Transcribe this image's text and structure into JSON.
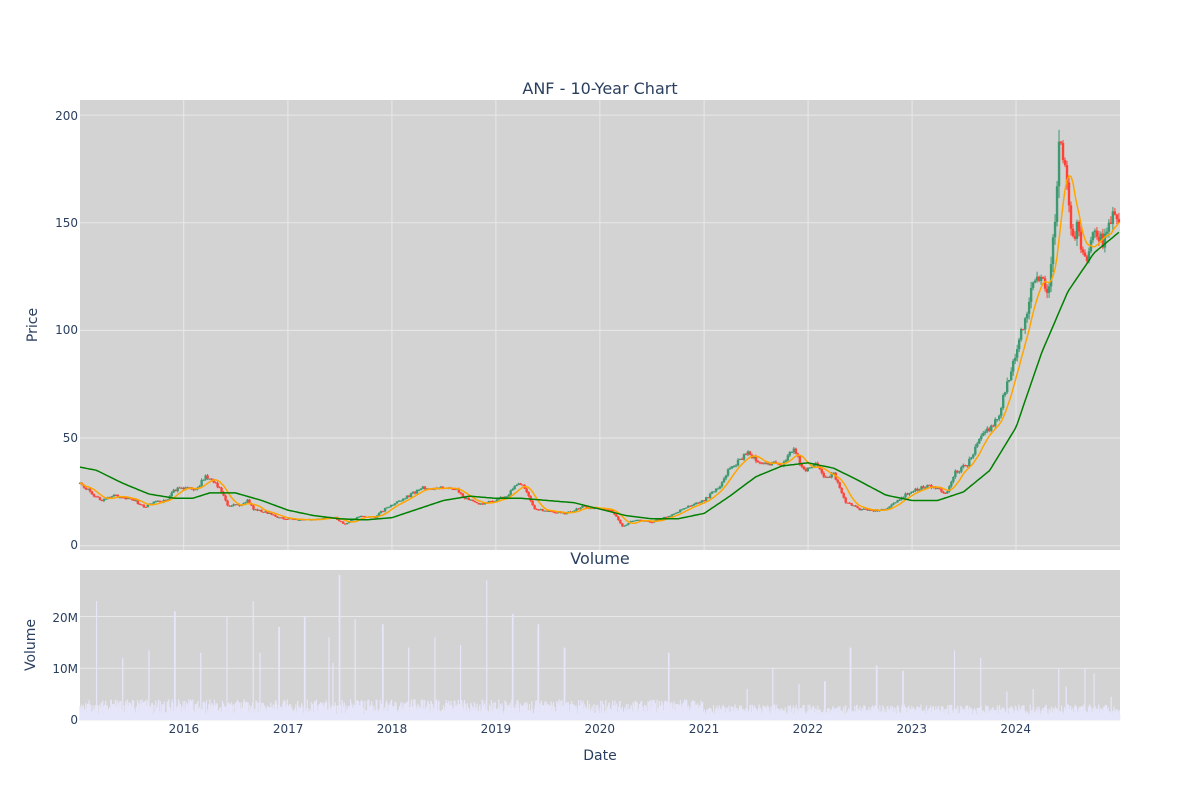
{
  "chart_data": [
    {
      "type": "candlestick",
      "title": "ANF - 10-Year Chart",
      "ylabel": "Price",
      "ylim": [
        -2,
        207
      ],
      "yticks": [
        0,
        50,
        100,
        150,
        200
      ],
      "xlim": [
        "2015-01-02",
        "2024-12-31"
      ],
      "xticks": [
        "2016",
        "2017",
        "2018",
        "2019",
        "2020",
        "2021",
        "2022",
        "2023",
        "2024"
      ],
      "colors": {
        "up": "#3d9970",
        "down": "#ff4136",
        "ma_short": "#ffa500",
        "ma_long": "#008000",
        "plot_bg": "#d3d3d3",
        "grid": "#e8e8e8"
      },
      "close_anchors": [
        [
          "2015-01-02",
          29
        ],
        [
          "2015-02-15",
          24
        ],
        [
          "2015-03-15",
          21
        ],
        [
          "2015-05-01",
          23
        ],
        [
          "2015-07-01",
          22
        ],
        [
          "2015-08-15",
          18
        ],
        [
          "2015-09-15",
          20
        ],
        [
          "2015-11-01",
          21
        ],
        [
          "2015-12-01",
          26
        ],
        [
          "2016-01-15",
          27
        ],
        [
          "2016-02-15",
          26
        ],
        [
          "2016-03-15",
          32
        ],
        [
          "2016-04-15",
          30
        ],
        [
          "2016-05-10",
          26
        ],
        [
          "2016-06-01",
          19
        ],
        [
          "2016-07-15",
          19
        ],
        [
          "2016-08-15",
          21
        ],
        [
          "2016-09-01",
          17
        ],
        [
          "2016-11-01",
          15
        ],
        [
          "2016-12-01",
          13
        ],
        [
          "2017-02-01",
          12
        ],
        [
          "2017-04-01",
          12
        ],
        [
          "2017-05-15",
          13
        ],
        [
          "2017-06-15",
          13
        ],
        [
          "2017-07-15",
          10
        ],
        [
          "2017-08-15",
          12
        ],
        [
          "2017-09-15",
          14
        ],
        [
          "2017-11-01",
          13
        ],
        [
          "2017-12-15",
          18
        ],
        [
          "2018-03-01",
          23
        ],
        [
          "2018-04-15",
          27
        ],
        [
          "2018-05-15",
          26
        ],
        [
          "2018-07-01",
          27
        ],
        [
          "2018-08-15",
          27
        ],
        [
          "2018-09-15",
          22
        ],
        [
          "2018-11-01",
          19
        ],
        [
          "2019-01-01",
          21
        ],
        [
          "2019-02-15",
          24
        ],
        [
          "2019-03-15",
          29
        ],
        [
          "2019-04-15",
          27
        ],
        [
          "2019-05-15",
          17
        ],
        [
          "2019-07-01",
          16
        ],
        [
          "2019-09-01",
          15
        ],
        [
          "2019-11-01",
          18
        ],
        [
          "2020-01-01",
          17
        ],
        [
          "2020-02-15",
          16
        ],
        [
          "2020-03-20",
          9
        ],
        [
          "2020-05-01",
          12
        ],
        [
          "2020-07-01",
          11
        ],
        [
          "2020-09-01",
          14
        ],
        [
          "2020-11-01",
          18
        ],
        [
          "2021-01-01",
          21
        ],
        [
          "2021-03-01",
          28
        ],
        [
          "2021-04-01",
          36
        ],
        [
          "2021-05-01",
          39
        ],
        [
          "2021-06-01",
          43
        ],
        [
          "2021-07-01",
          40
        ],
        [
          "2021-08-01",
          38
        ],
        [
          "2021-10-01",
          38
        ],
        [
          "2021-11-15",
          45
        ],
        [
          "2021-12-15",
          35
        ],
        [
          "2022-02-01",
          38
        ],
        [
          "2022-03-01",
          32
        ],
        [
          "2022-04-01",
          33
        ],
        [
          "2022-05-15",
          20
        ],
        [
          "2022-07-01",
          17
        ],
        [
          "2022-08-15",
          16
        ],
        [
          "2022-10-01",
          17
        ],
        [
          "2022-12-01",
          23
        ],
        [
          "2023-01-15",
          26
        ],
        [
          "2023-03-01",
          28
        ],
        [
          "2023-05-01",
          24
        ],
        [
          "2023-06-01",
          34
        ],
        [
          "2023-07-15",
          38
        ],
        [
          "2023-09-01",
          50
        ],
        [
          "2023-11-01",
          60
        ],
        [
          "2023-12-15",
          82
        ],
        [
          "2024-02-01",
          105
        ],
        [
          "2024-03-01",
          125
        ],
        [
          "2024-04-01",
          125
        ],
        [
          "2024-04-20",
          115
        ],
        [
          "2024-05-15",
          150
        ],
        [
          "2024-06-01",
          185
        ],
        [
          "2024-07-01",
          170
        ],
        [
          "2024-07-15",
          140
        ],
        [
          "2024-08-01",
          148
        ],
        [
          "2024-09-01",
          133
        ],
        [
          "2024-10-01",
          148
        ],
        [
          "2024-11-01",
          140
        ],
        [
          "2024-12-01",
          152
        ],
        [
          "2024-12-31",
          150
        ]
      ],
      "ma_long_anchors": [
        [
          "2015-01-02",
          36.5
        ],
        [
          "2015-03-01",
          35
        ],
        [
          "2015-06-01",
          29
        ],
        [
          "2015-09-01",
          24
        ],
        [
          "2015-12-01",
          22
        ],
        [
          "2016-02-01",
          22
        ],
        [
          "2016-04-01",
          24.5
        ],
        [
          "2016-07-01",
          24.5
        ],
        [
          "2016-10-01",
          21
        ],
        [
          "2017-01-01",
          16.5
        ],
        [
          "2017-04-01",
          14
        ],
        [
          "2017-07-01",
          12.5
        ],
        [
          "2017-10-01",
          12
        ],
        [
          "2018-01-01",
          13
        ],
        [
          "2018-04-01",
          17
        ],
        [
          "2018-07-01",
          21
        ],
        [
          "2018-10-01",
          23
        ],
        [
          "2019-01-01",
          22
        ],
        [
          "2019-04-01",
          22
        ],
        [
          "2019-07-01",
          21
        ],
        [
          "2019-10-01",
          20
        ],
        [
          "2020-01-01",
          17
        ],
        [
          "2020-04-01",
          14
        ],
        [
          "2020-07-01",
          12.5
        ],
        [
          "2020-10-01",
          12.5
        ],
        [
          "2021-01-01",
          15
        ],
        [
          "2021-04-01",
          23
        ],
        [
          "2021-07-01",
          32
        ],
        [
          "2021-10-01",
          37
        ],
        [
          "2022-01-01",
          38.5
        ],
        [
          "2022-04-01",
          36
        ],
        [
          "2022-07-01",
          30
        ],
        [
          "2022-10-01",
          23.5
        ],
        [
          "2023-01-01",
          21
        ],
        [
          "2023-04-01",
          21
        ],
        [
          "2023-07-01",
          25
        ],
        [
          "2023-10-01",
          35
        ],
        [
          "2024-01-01",
          55
        ],
        [
          "2024-04-01",
          90
        ],
        [
          "2024-07-01",
          118
        ],
        [
          "2024-10-01",
          136
        ],
        [
          "2024-12-31",
          146
        ]
      ]
    },
    {
      "type": "bar",
      "title": "Volume",
      "ylabel": "Volume",
      "xlabel": "Date",
      "ylim": [
        0,
        29000000
      ],
      "yticks": [
        0,
        10000000,
        20000000
      ],
      "ytick_labels": [
        "0",
        "10M",
        "20M"
      ],
      "bar_color": "#e6e6fa",
      "spike_anchors": [
        [
          "2015-03-01",
          23000000
        ],
        [
          "2015-06-01",
          12000000
        ],
        [
          "2015-09-01",
          13500000
        ],
        [
          "2015-12-01",
          21000000
        ],
        [
          "2016-03-01",
          13000000
        ],
        [
          "2016-06-01",
          20000000
        ],
        [
          "2016-09-01",
          23000000
        ],
        [
          "2016-09-25",
          13000000
        ],
        [
          "2016-12-01",
          18000000
        ],
        [
          "2017-03-01",
          20000000
        ],
        [
          "2017-05-25",
          16000000
        ],
        [
          "2017-06-08",
          11000000
        ],
        [
          "2017-07-01",
          28000000
        ],
        [
          "2017-08-25",
          19500000
        ],
        [
          "2017-11-30",
          18500000
        ],
        [
          "2018-03-01",
          14000000
        ],
        [
          "2018-06-01",
          16000000
        ],
        [
          "2018-08-30",
          14500000
        ],
        [
          "2018-11-30",
          27000000
        ],
        [
          "2019-03-01",
          20500000
        ],
        [
          "2019-05-30",
          18500000
        ],
        [
          "2019-08-30",
          14000000
        ],
        [
          "2020-08-30",
          13000000
        ],
        [
          "2021-06-01",
          6000000
        ],
        [
          "2021-08-30",
          10000000
        ],
        [
          "2021-11-30",
          7000000
        ],
        [
          "2022-03-01",
          7500000
        ],
        [
          "2022-05-30",
          14000000
        ],
        [
          "2022-08-30",
          10500000
        ],
        [
          "2022-11-30",
          9500000
        ],
        [
          "2023-05-30",
          13500000
        ],
        [
          "2023-08-30",
          12000000
        ],
        [
          "2023-11-30",
          5500000
        ],
        [
          "2024-03-01",
          6000000
        ],
        [
          "2024-05-30",
          10000000
        ],
        [
          "2024-06-25",
          6500000
        ],
        [
          "2024-08-30",
          10000000
        ],
        [
          "2024-10-01",
          9000000
        ],
        [
          "2024-11-30",
          4500000
        ]
      ]
    }
  ]
}
